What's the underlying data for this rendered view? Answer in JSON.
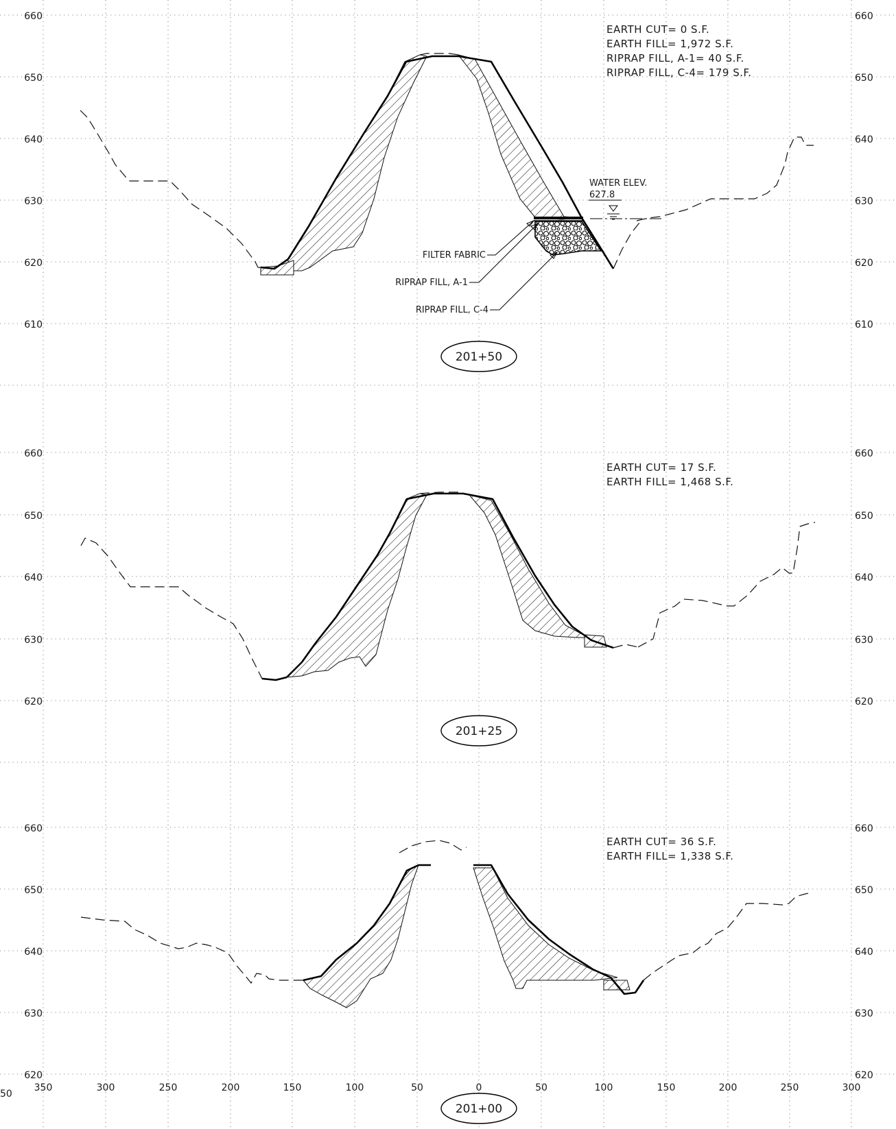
{
  "sections": [
    {
      "station": "201+50",
      "notes": [
        "EARTH CUT= 0 S.F.",
        "EARTH FILL= 1,972 S.F.",
        "RIPRAP FILL, A-1= 40 S.F.",
        "RIPRAP FILL, C-4= 179 S.F."
      ],
      "elevation_labels": [
        "660",
        "650",
        "640",
        "630",
        "620",
        "610"
      ],
      "water": {
        "label": "WATER ELEV.",
        "value": "627.8"
      },
      "callouts": [
        "FILTER FABRIC",
        "RIPRAP FILL, A-1",
        "RIPRAP FILL, C-4"
      ]
    },
    {
      "station": "201+25",
      "notes": [
        "EARTH CUT= 17 S.F.",
        "EARTH FILL= 1,468 S.F."
      ],
      "elevation_labels": [
        "660",
        "650",
        "640",
        "630",
        "620"
      ]
    },
    {
      "station": "201+00",
      "notes": [
        "EARTH CUT= 36 S.F.",
        "EARTH FILL= 1,338 S.F."
      ],
      "elevation_labels": [
        "660",
        "650",
        "640",
        "630",
        "620"
      ]
    }
  ],
  "offset_labels": [
    "350",
    "300",
    "250",
    "200",
    "150",
    "100",
    "50",
    "0",
    "50",
    "100",
    "150",
    "200",
    "250",
    "300"
  ],
  "edge_label": "50",
  "colors": {
    "line": "#000000",
    "grid": "#8a8a8a",
    "background": "#ffffff"
  }
}
